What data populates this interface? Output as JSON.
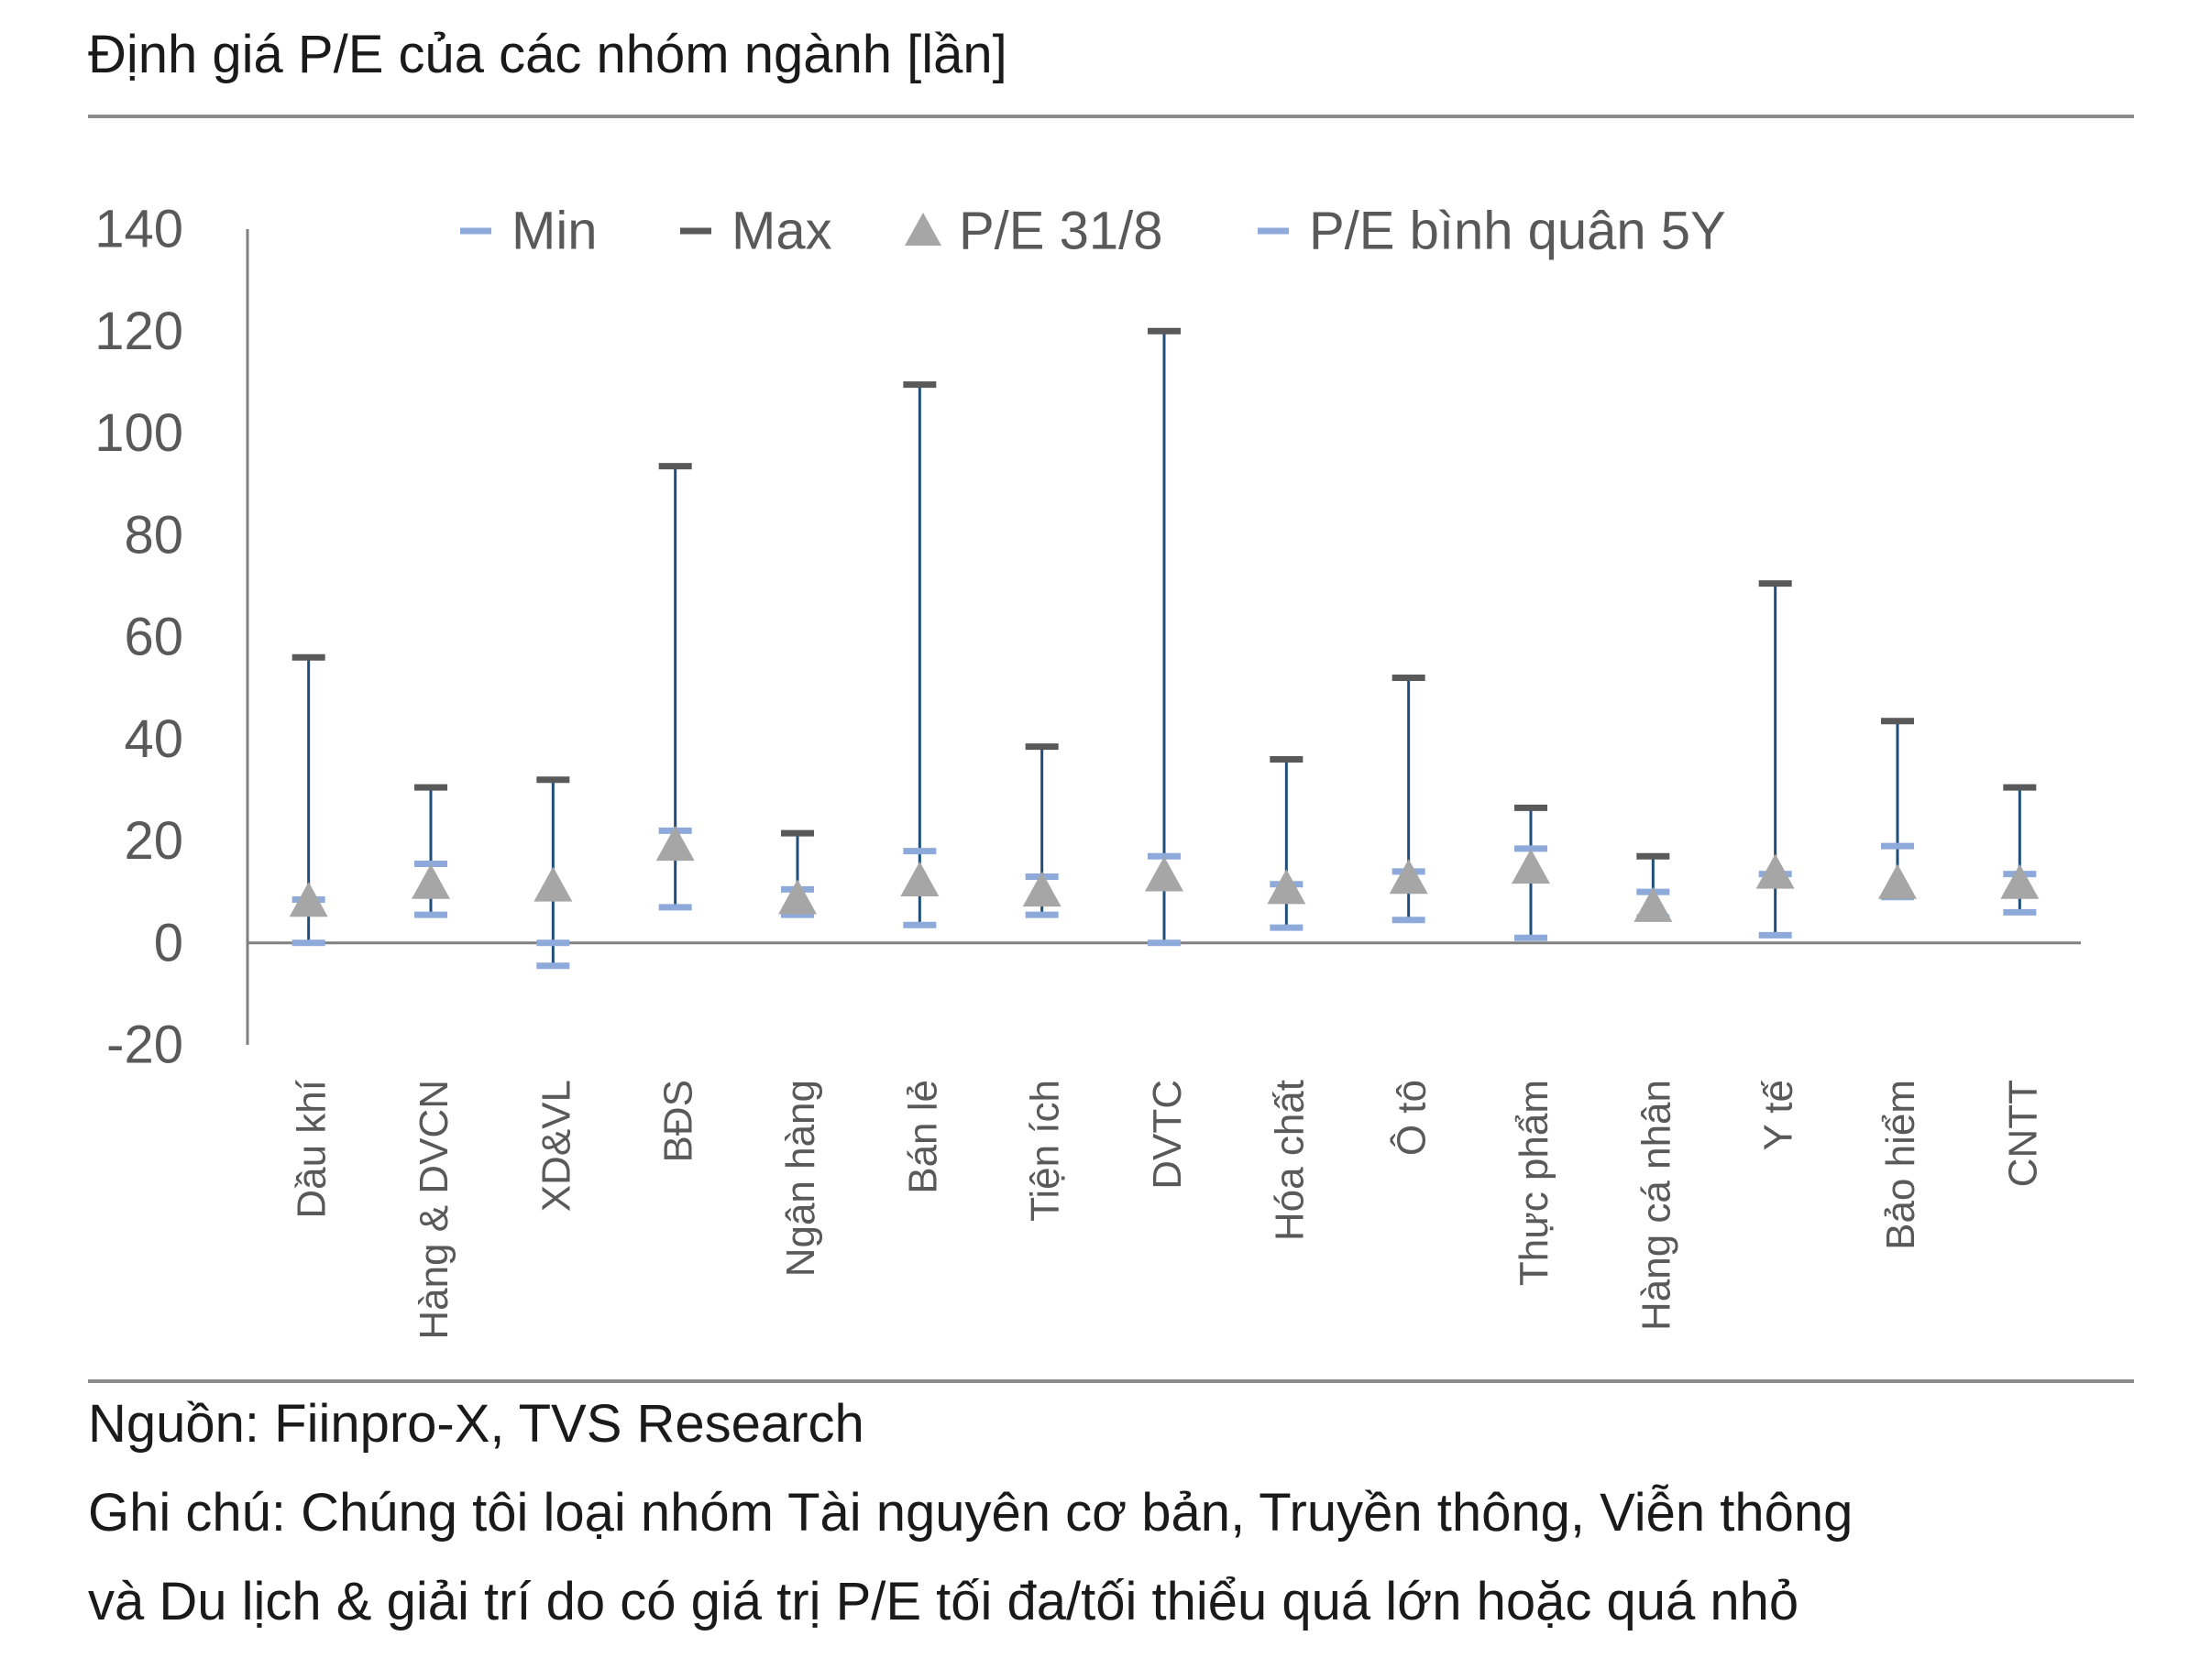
{
  "header": {
    "title": "Định giá P/E của các nhóm ngành [lần]"
  },
  "footer": {
    "source": "Nguồn: Fiinpro-X, TVS Research",
    "note_line1": "Ghi chú: Chúng tôi loại nhóm Tài nguyên cơ bản, Truyền thông, Viễn thông",
    "note_line2": "và Du lịch & giải trí do có giá trị P/E tối đa/tối thiểu quá lớn hoặc quá nhỏ"
  },
  "colors": {
    "min": "#8eaadb",
    "max": "#595959",
    "pe": "#a6a6a6",
    "avg": "#8eaadb",
    "whisker": "#1f4e79",
    "axis": "#808080",
    "text": "#595959"
  },
  "chart_data": {
    "type": "error-bar",
    "title": "Định giá P/E của các nhóm ngành [lần]",
    "ylim": [
      -20,
      140
    ],
    "yticks": [
      -20,
      0,
      20,
      40,
      60,
      80,
      100,
      120,
      140
    ],
    "grid": false,
    "legend_position": "top",
    "categories": [
      "Dầu khí",
      "Hàng & DVCN",
      "XD&VL",
      "BĐS",
      "Ngân hàng",
      "Bán lẻ",
      "Tiện ích",
      "DVTC",
      "Hóa chất",
      "Ô tô",
      "Thực phẩm",
      "Hàng cá nhân",
      "Y tế",
      "Bảo hiểm",
      "CNTT"
    ],
    "series": [
      {
        "name": "Min",
        "values": [
          0,
          5.5,
          -4.5,
          7,
          5.5,
          3.5,
          5.5,
          0,
          3,
          4.5,
          1,
          5,
          1.5,
          9,
          6
        ]
      },
      {
        "name": "Max",
        "values": [
          56,
          30.5,
          32,
          93.5,
          21.5,
          109.5,
          38.5,
          120,
          36,
          52,
          26.5,
          17,
          70.5,
          43.5,
          30.5
        ]
      },
      {
        "name": "P/E 31/8",
        "values": [
          8,
          11.5,
          11,
          19,
          8.5,
          12,
          10,
          13,
          10.5,
          12.5,
          14.5,
          7,
          13.5,
          11.5,
          11.5
        ]
      },
      {
        "name": "P/E bình quân 5Y",
        "values": [
          8.5,
          15.5,
          0,
          22,
          10.5,
          18,
          13,
          17,
          11.5,
          14,
          18.5,
          10,
          13.5,
          19,
          13.5
        ]
      }
    ]
  }
}
